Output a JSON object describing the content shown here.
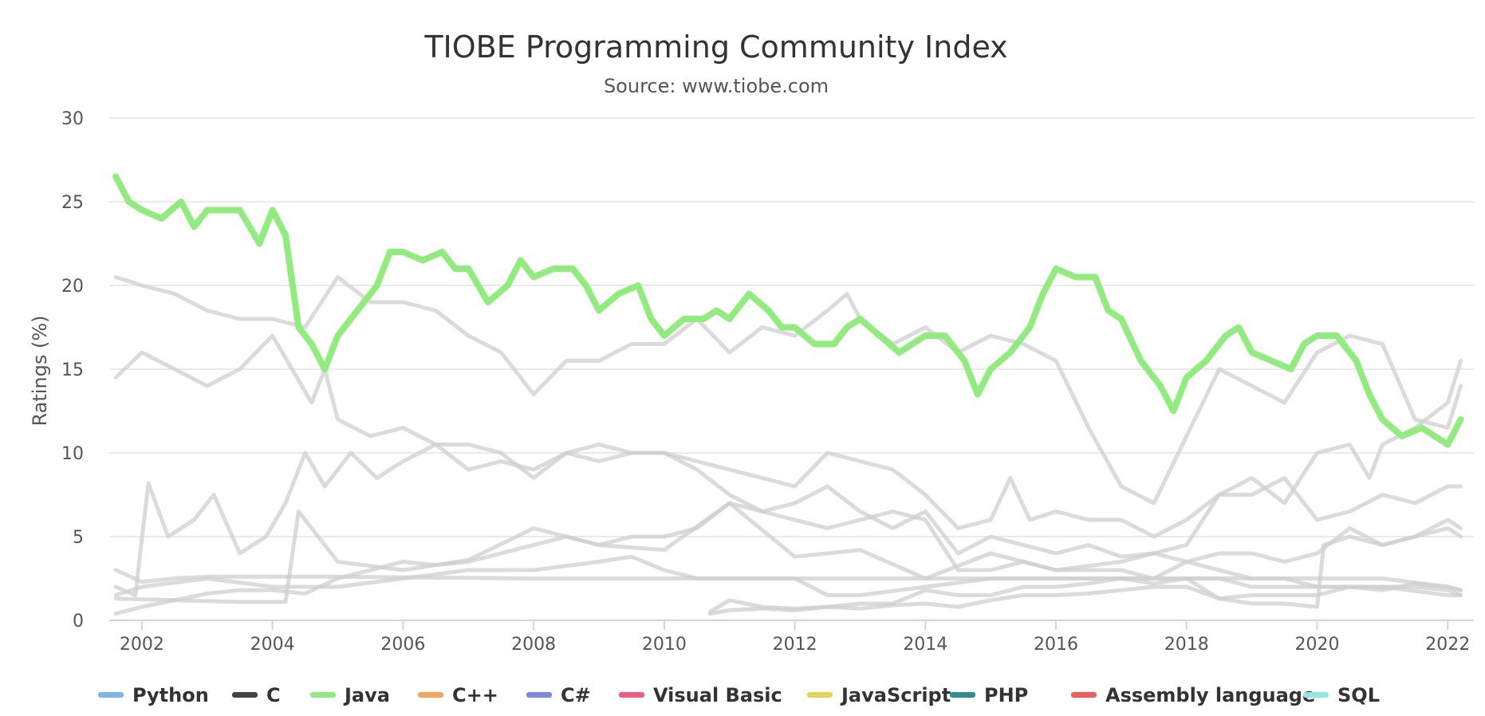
{
  "chart_data": {
    "type": "line",
    "title": "TIOBE Programming Community Index",
    "subtitle": "Source: www.tiobe.com",
    "ylabel": "Ratings (%)",
    "ylim": [
      0,
      30
    ],
    "yticks": [
      0,
      5,
      10,
      15,
      20,
      25,
      30
    ],
    "xlim": [
      2001.5,
      2022.4
    ],
    "xticks": [
      "2002",
      "2004",
      "2006",
      "2008",
      "2010",
      "2012",
      "2014",
      "2016",
      "2018",
      "2020",
      "2022"
    ],
    "grid": true,
    "legend_position": "bottom",
    "highlighted_series": "Java",
    "series": [
      {
        "name": "Python",
        "color": "#7cb5ec",
        "x": [
          2001.6,
          2002.5,
          2003.5,
          2004.2,
          2004.4,
          2005.0,
          2006.0,
          2007.0,
          2008.0,
          2009.0,
          2010.0,
          2011.0,
          2012.0,
          2013.0,
          2014.0,
          2015.0,
          2016.0,
          2017.0,
          2018.0,
          2018.5,
          2019.0,
          2019.5,
          2020.0,
          2020.5,
          2020.8,
          2021.0,
          2021.5,
          2022.0,
          2022.2
        ],
        "y": [
          1.3,
          1.2,
          1.1,
          1.1,
          6.5,
          3.5,
          3.0,
          3.6,
          5.5,
          4.5,
          4.2,
          7.0,
          3.8,
          4.2,
          2.5,
          4.0,
          3.0,
          3.5,
          4.5,
          7.5,
          8.5,
          7.0,
          10.0,
          10.5,
          8.5,
          10.5,
          11.5,
          13.0,
          15.5
        ]
      },
      {
        "name": "C",
        "color": "#434348",
        "x": [
          2001.6,
          2002.0,
          2002.5,
          2003.0,
          2003.5,
          2004.0,
          2004.5,
          2005.0,
          2005.5,
          2006.0,
          2006.5,
          2007.0,
          2007.5,
          2008.0,
          2008.5,
          2009.0,
          2009.5,
          2010.0,
          2010.5,
          2011.0,
          2011.5,
          2012.0,
          2012.5,
          2012.8,
          2013.0,
          2013.5,
          2014.0,
          2014.5,
          2015.0,
          2015.5,
          2016.0,
          2016.5,
          2017.0,
          2017.5,
          2018.0,
          2018.5,
          2019.0,
          2019.5,
          2020.0,
          2020.5,
          2021.0,
          2021.5,
          2022.0,
          2022.2
        ],
        "y": [
          20.5,
          20.0,
          19.5,
          18.5,
          18.0,
          18.0,
          17.5,
          20.5,
          19.0,
          19.0,
          18.5,
          17.0,
          16.0,
          13.5,
          15.5,
          15.5,
          16.5,
          16.5,
          18.0,
          16.0,
          17.5,
          17.0,
          18.5,
          19.5,
          18.0,
          16.5,
          17.5,
          16.0,
          17.0,
          16.5,
          15.5,
          11.5,
          8.0,
          7.0,
          11.0,
          15.0,
          14.0,
          13.0,
          16.0,
          17.0,
          16.5,
          12.0,
          11.5,
          14.0
        ]
      },
      {
        "name": "Java",
        "color": "#90ed7d",
        "x": [
          2001.6,
          2001.8,
          2002.0,
          2002.3,
          2002.6,
          2002.8,
          2003.0,
          2003.3,
          2003.5,
          2003.8,
          2004.0,
          2004.2,
          2004.4,
          2004.6,
          2004.8,
          2005.0,
          2005.3,
          2005.6,
          2005.8,
          2006.0,
          2006.3,
          2006.6,
          2006.8,
          2007.0,
          2007.3,
          2007.6,
          2007.8,
          2008.0,
          2008.3,
          2008.6,
          2008.8,
          2009.0,
          2009.3,
          2009.6,
          2009.8,
          2010.0,
          2010.3,
          2010.6,
          2010.8,
          2011.0,
          2011.3,
          2011.6,
          2011.8,
          2012.0,
          2012.3,
          2012.6,
          2012.8,
          2013.0,
          2013.3,
          2013.6,
          2013.8,
          2014.0,
          2014.3,
          2014.6,
          2014.8,
          2015.0,
          2015.3,
          2015.6,
          2015.8,
          2016.0,
          2016.3,
          2016.6,
          2016.8,
          2017.0,
          2017.3,
          2017.6,
          2017.8,
          2018.0,
          2018.3,
          2018.6,
          2018.8,
          2019.0,
          2019.3,
          2019.6,
          2019.8,
          2020.0,
          2020.3,
          2020.6,
          2020.8,
          2021.0,
          2021.3,
          2021.6,
          2021.8,
          2022.0,
          2022.2
        ],
        "y": [
          26.5,
          25.0,
          24.5,
          24.0,
          25.0,
          23.5,
          24.5,
          24.5,
          24.5,
          22.5,
          24.5,
          23.0,
          17.5,
          16.5,
          15.0,
          17.0,
          18.5,
          20.0,
          22.0,
          22.0,
          21.5,
          22.0,
          21.0,
          21.0,
          19.0,
          20.0,
          21.5,
          20.5,
          21.0,
          21.0,
          20.0,
          18.5,
          19.5,
          20.0,
          18.0,
          17.0,
          18.0,
          18.0,
          18.5,
          18.0,
          19.5,
          18.5,
          17.5,
          17.5,
          16.5,
          16.5,
          17.5,
          18.0,
          17.0,
          16.0,
          16.5,
          17.0,
          17.0,
          15.5,
          13.5,
          15.0,
          16.0,
          17.5,
          19.5,
          21.0,
          20.5,
          20.5,
          18.5,
          18.0,
          15.5,
          14.0,
          12.5,
          14.5,
          15.5,
          17.0,
          17.5,
          16.0,
          15.5,
          15.0,
          16.5,
          17.0,
          17.0,
          15.5,
          13.5,
          12.0,
          11.0,
          11.5,
          11.0,
          10.5,
          12.0
        ]
      },
      {
        "name": "C++",
        "color": "#f7a35c",
        "x": [
          2001.6,
          2002.0,
          2002.5,
          2003.0,
          2003.5,
          2004.0,
          2004.3,
          2004.6,
          2004.8,
          2005.0,
          2005.5,
          2006.0,
          2006.5,
          2007.0,
          2007.5,
          2008.0,
          2008.5,
          2009.0,
          2009.5,
          2010.0,
          2010.5,
          2011.0,
          2011.5,
          2012.0,
          2012.5,
          2013.0,
          2013.5,
          2014.0,
          2014.5,
          2015.0,
          2015.3,
          2015.6,
          2016.0,
          2016.5,
          2017.0,
          2017.5,
          2018.0,
          2018.5,
          2019.0,
          2019.5,
          2020.0,
          2020.5,
          2021.0,
          2021.5,
          2022.0,
          2022.2
        ],
        "y": [
          14.5,
          16.0,
          15.0,
          14.0,
          15.0,
          17.0,
          15.0,
          13.0,
          15.0,
          12.0,
          11.0,
          11.5,
          10.5,
          10.5,
          10.0,
          8.5,
          10.0,
          10.5,
          10.0,
          10.0,
          9.5,
          9.0,
          8.5,
          8.0,
          10.0,
          9.5,
          9.0,
          7.5,
          5.5,
          6.0,
          8.5,
          6.0,
          6.5,
          6.0,
          6.0,
          5.0,
          6.0,
          7.5,
          7.5,
          8.5,
          6.0,
          6.5,
          7.5,
          7.0,
          8.0,
          8.0
        ]
      },
      {
        "name": "C#",
        "color": "#8085e9",
        "x": [
          2001.6,
          2002.0,
          2002.5,
          2003.0,
          2003.5,
          2004.0,
          2004.5,
          2005.0,
          2005.5,
          2006.0,
          2006.5,
          2007.0,
          2007.5,
          2008.0,
          2008.5,
          2009.0,
          2009.5,
          2010.0,
          2010.5,
          2011.0,
          2011.5,
          2012.0,
          2012.5,
          2013.0,
          2013.5,
          2014.0,
          2014.5,
          2015.0,
          2015.5,
          2016.0,
          2016.5,
          2017.0,
          2017.5,
          2018.0,
          2018.5,
          2019.0,
          2019.5,
          2020.0,
          2020.5,
          2021.0,
          2021.5,
          2022.0,
          2022.2
        ],
        "y": [
          0.4,
          0.8,
          1.2,
          1.6,
          1.8,
          1.8,
          1.6,
          2.5,
          3.0,
          3.5,
          3.3,
          3.5,
          4.0,
          4.5,
          5.0,
          4.5,
          5.0,
          5.0,
          5.5,
          7.0,
          6.5,
          7.0,
          8.0,
          6.5,
          5.5,
          6.5,
          4.0,
          5.0,
          4.5,
          4.0,
          4.5,
          3.8,
          4.0,
          3.5,
          4.0,
          4.0,
          3.5,
          4.0,
          5.5,
          4.5,
          5.0,
          6.0,
          5.5
        ]
      },
      {
        "name": "Visual Basic",
        "color": "#f15c80",
        "x": [
          2010.7,
          2011.0,
          2011.5,
          2012.0,
          2012.5,
          2013.0,
          2013.5,
          2014.0,
          2014.5,
          2015.0,
          2015.5,
          2016.0,
          2016.5,
          2017.0,
          2017.5,
          2018.0,
          2018.5,
          2019.0,
          2019.5,
          2020.0,
          2020.1,
          2020.5,
          2021.0,
          2021.5,
          2022.0,
          2022.2
        ],
        "y": [
          0.4,
          0.6,
          0.7,
          0.6,
          0.8,
          0.7,
          0.9,
          1.0,
          0.8,
          1.2,
          1.5,
          1.5,
          1.6,
          1.8,
          2.0,
          2.0,
          1.3,
          1.0,
          1.0,
          0.8,
          4.5,
          5.0,
          4.5,
          5.0,
          5.5,
          5.0
        ]
      },
      {
        "name": "JavaScript",
        "color": "#e4d354",
        "x": [
          2001.6,
          2002.0,
          2003.0,
          2004.0,
          2005.0,
          2006.0,
          2007.0,
          2008.0,
          2009.0,
          2009.5,
          2010.0,
          2010.5,
          2011.0,
          2012.0,
          2012.5,
          2013.0,
          2014.0,
          2015.0,
          2016.0,
          2017.0,
          2018.0,
          2019.0,
          2020.0,
          2021.0,
          2022.0,
          2022.2
        ],
        "y": [
          1.5,
          2.0,
          2.5,
          2.0,
          2.0,
          2.5,
          3.0,
          3.0,
          3.5,
          3.8,
          3.0,
          2.5,
          2.5,
          2.5,
          1.5,
          1.5,
          2.0,
          2.5,
          2.5,
          2.5,
          2.5,
          2.5,
          2.5,
          2.5,
          2.0,
          1.8
        ]
      },
      {
        "name": "PHP",
        "color": "#2b908f",
        "x": [
          2001.6,
          2001.9,
          2002.1,
          2002.4,
          2002.8,
          2003.1,
          2003.5,
          2003.9,
          2004.2,
          2004.5,
          2004.8,
          2005.2,
          2005.6,
          2006.0,
          2006.5,
          2007.0,
          2007.5,
          2008.0,
          2008.5,
          2009.0,
          2009.5,
          2010.0,
          2010.5,
          2011.0,
          2011.5,
          2012.0,
          2012.5,
          2013.0,
          2013.5,
          2014.0,
          2014.5,
          2015.0,
          2015.5,
          2016.0,
          2016.5,
          2017.0,
          2017.5,
          2018.0,
          2018.5,
          2019.0,
          2019.5,
          2020.0,
          2020.5,
          2021.0,
          2021.5,
          2022.0,
          2022.2
        ],
        "y": [
          2.0,
          1.5,
          8.2,
          5.0,
          6.0,
          7.5,
          4.0,
          5.0,
          7.0,
          10.0,
          8.0,
          10.0,
          8.5,
          9.5,
          10.5,
          9.0,
          9.5,
          9.0,
          10.0,
          9.5,
          10.0,
          10.0,
          9.0,
          7.5,
          6.5,
          6.0,
          5.5,
          6.0,
          6.5,
          6.0,
          3.0,
          3.0,
          3.5,
          3.0,
          3.0,
          3.0,
          2.5,
          3.5,
          3.0,
          2.5,
          2.5,
          2.0,
          2.0,
          2.0,
          2.0,
          1.8,
          1.5
        ]
      },
      {
        "name": "Assembly language",
        "color": "#f45b5b",
        "x": [
          2010.7,
          2011.0,
          2011.5,
          2012.0,
          2012.5,
          2013.0,
          2013.5,
          2014.0,
          2014.5,
          2015.0,
          2015.5,
          2016.0,
          2016.5,
          2017.0,
          2017.5,
          2018.0,
          2018.5,
          2019.0,
          2019.5,
          2020.0,
          2020.5,
          2021.0,
          2021.5,
          2022.0,
          2022.2
        ],
        "y": [
          0.5,
          1.2,
          0.8,
          0.7,
          0.8,
          1.0,
          1.0,
          1.8,
          1.5,
          1.5,
          2.0,
          2.0,
          2.2,
          2.5,
          2.2,
          2.5,
          1.3,
          1.5,
          1.5,
          1.5,
          2.0,
          1.8,
          2.2,
          2.0,
          1.8
        ]
      },
      {
        "name": "SQL",
        "color": "#91e8e1",
        "x": [
          2001.6,
          2002.0,
          2002.5,
          2003.0,
          2004.0,
          2005.0,
          2008.0,
          2010.0,
          2012.0,
          2014.0,
          2015.0,
          2016.0,
          2017.0,
          2018.0,
          2018.5,
          2019.0,
          2020.0,
          2021.0,
          2022.0,
          2022.2
        ],
        "y": [
          3.0,
          2.3,
          2.5,
          2.6,
          2.6,
          2.6,
          2.5,
          2.5,
          2.5,
          2.5,
          2.5,
          2.5,
          2.5,
          2.5,
          2.5,
          2.0,
          2.0,
          2.0,
          1.5,
          1.5
        ]
      }
    ]
  }
}
